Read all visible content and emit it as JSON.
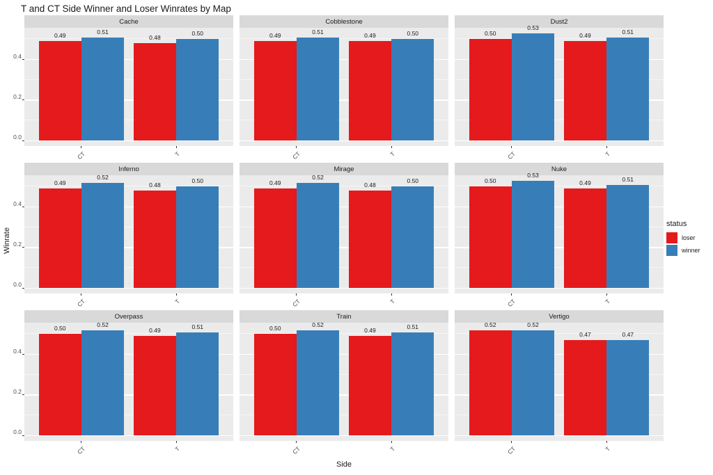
{
  "title": "T and CT Side Winner and Loser Winrates by Map",
  "axes": {
    "x_label": "Side",
    "y_label": "Winrate",
    "y_tick_labels": [
      "0.0",
      "0.2",
      "0.4"
    ]
  },
  "legend": {
    "title": "status",
    "entries": [
      {
        "label": "loser",
        "color": "#E41A1C"
      },
      {
        "label": "winner",
        "color": "#377EB8"
      }
    ]
  },
  "colors": {
    "loser": "#E41A1C",
    "winner": "#377EB8",
    "panel_background": "#EBEBEB",
    "strip_background": "#D9D9D9",
    "grid_major": "#FFFFFF"
  },
  "chart_data": {
    "type": "bar",
    "title": "T and CT Side Winner and Loser Winrates by Map",
    "facet_variable": "map",
    "categories": [
      "CT",
      "T"
    ],
    "xlabel": "Side",
    "ylabel": "Winrate",
    "ylim": [
      0,
      0.5565
    ],
    "yticks": [
      0,
      0.2,
      0.4
    ],
    "yticks_minor": [
      0.1,
      0.3,
      0.5
    ],
    "grid": true,
    "legend_position": "right",
    "facets": [
      {
        "map": "Cache",
        "series": [
          {
            "name": "loser",
            "values": [
              0.49,
              0.48
            ]
          },
          {
            "name": "winner",
            "values": [
              0.51,
              0.5
            ]
          }
        ]
      },
      {
        "map": "Cobblestone",
        "series": [
          {
            "name": "loser",
            "values": [
              0.49,
              0.49
            ]
          },
          {
            "name": "winner",
            "values": [
              0.51,
              0.5
            ]
          }
        ]
      },
      {
        "map": "Dust2",
        "series": [
          {
            "name": "loser",
            "values": [
              0.5,
              0.49
            ]
          },
          {
            "name": "winner",
            "values": [
              0.53,
              0.51
            ]
          }
        ]
      },
      {
        "map": "Inferno",
        "series": [
          {
            "name": "loser",
            "values": [
              0.49,
              0.48
            ]
          },
          {
            "name": "winner",
            "values": [
              0.52,
              0.5
            ]
          }
        ]
      },
      {
        "map": "Mirage",
        "series": [
          {
            "name": "loser",
            "values": [
              0.49,
              0.48
            ]
          },
          {
            "name": "winner",
            "values": [
              0.52,
              0.5
            ]
          }
        ]
      },
      {
        "map": "Nuke",
        "series": [
          {
            "name": "loser",
            "values": [
              0.5,
              0.49
            ]
          },
          {
            "name": "winner",
            "values": [
              0.53,
              0.51
            ]
          }
        ]
      },
      {
        "map": "Overpass",
        "series": [
          {
            "name": "loser",
            "values": [
              0.5,
              0.49
            ]
          },
          {
            "name": "winner",
            "values": [
              0.52,
              0.51
            ]
          }
        ]
      },
      {
        "map": "Train",
        "series": [
          {
            "name": "loser",
            "values": [
              0.5,
              0.49
            ]
          },
          {
            "name": "winner",
            "values": [
              0.52,
              0.51
            ]
          }
        ]
      },
      {
        "map": "Vertigo",
        "series": [
          {
            "name": "loser",
            "values": [
              0.52,
              0.47
            ]
          },
          {
            "name": "winner",
            "values": [
              0.52,
              0.47
            ]
          }
        ]
      }
    ]
  }
}
